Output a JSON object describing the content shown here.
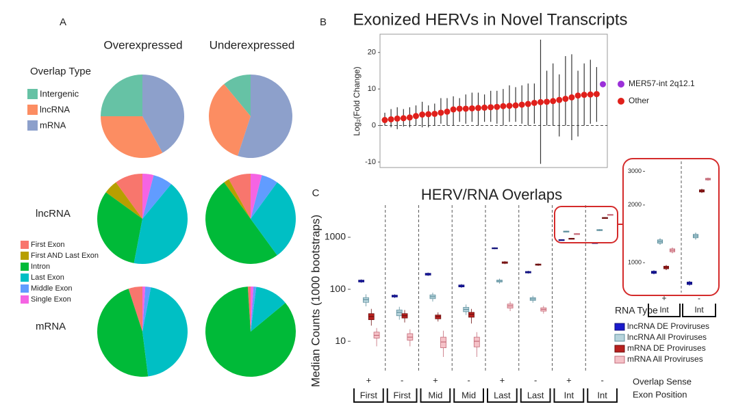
{
  "chart_data": [
    {
      "type": "pie",
      "label": "A",
      "columns": [
        "Overexpressed",
        "Underexpressed"
      ],
      "legends": [
        {
          "title": "Overlap Type",
          "categories": [
            "Intergenic",
            "lncRNA",
            "mRNA"
          ],
          "colors": [
            "#66c2a5",
            "#fc8d62",
            "#8da0cb"
          ]
        },
        {
          "categories": [
            "First Exon",
            "First AND Last Exon",
            "Intron",
            "Last Exon",
            "Middle Exon",
            "Single Exon"
          ],
          "colors": [
            "#f8766d",
            "#b79f00",
            "#00ba38",
            "#00bfc4",
            "#619cff",
            "#f564e3"
          ]
        }
      ],
      "rows": [
        {
          "values": [
            [
              25,
              33,
              42
            ],
            [
              11,
              34,
              55
            ]
          ]
        },
        {
          "title": "lncRNA",
          "values": [
            [
              10,
              5,
              32,
              42,
              7,
              4
            ],
            [
              8,
              2,
              50,
              30,
              6,
              4
            ]
          ]
        },
        {
          "title": "mRNA",
          "values": [
            [
              5,
              0,
              47,
              45,
              2,
              1
            ],
            [
              1,
              0,
              85,
              12,
              1,
              1
            ]
          ]
        }
      ]
    },
    {
      "type": "pointrange",
      "label": "B",
      "title": "Exonized HERVs in Novel Transcripts",
      "ylabel": "Log₂(Fold Change)",
      "ylim": [
        -11.5,
        25
      ],
      "yticks": [
        -10,
        0,
        10,
        20
      ],
      "hline": 0,
      "categories": [
        null,
        null,
        null,
        null,
        null,
        null,
        null,
        null,
        null,
        null,
        null,
        null,
        null,
        null,
        null,
        null,
        null,
        null,
        null,
        null,
        null,
        null,
        null,
        null,
        null,
        null,
        null,
        null,
        null,
        null,
        null,
        null,
        null,
        null,
        null,
        null
      ],
      "series": [
        {
          "name": "MER57-int 2q12.1",
          "color": "#9b30d9",
          "values": [
            null,
            null,
            null,
            null,
            null,
            null,
            null,
            null,
            null,
            null,
            null,
            null,
            null,
            null,
            null,
            null,
            null,
            null,
            null,
            null,
            null,
            null,
            null,
            null,
            null,
            null,
            null,
            null,
            null,
            null,
            null,
            null,
            null,
            null,
            null,
            11.3
          ]
        },
        {
          "name": "Other",
          "color": "#e0201b",
          "values": [
            1.5,
            1.7,
            1.9,
            2.0,
            2.2,
            2.6,
            3.0,
            3.1,
            3.2,
            3.5,
            3.8,
            4.4,
            4.6,
            4.6,
            4.7,
            4.8,
            4.9,
            5.0,
            5.1,
            5.3,
            5.4,
            5.5,
            5.7,
            5.9,
            6.2,
            6.4,
            6.5,
            6.7,
            7.0,
            7.3,
            7.7,
            8.2,
            8.4,
            8.5,
            8.6,
            null
          ],
          "lower": [
            0,
            -0.5,
            -1,
            -0.3,
            -0.5,
            0,
            -0.5,
            -0.5,
            0,
            0.5,
            0,
            0,
            1,
            0.5,
            1,
            0,
            1,
            1,
            0.5,
            0,
            1,
            1,
            0.5,
            0,
            0.5,
            -10.5,
            0,
            0,
            -3,
            0,
            -4,
            -3,
            0,
            0.5,
            1,
            null
          ],
          "upper": [
            3.5,
            4.5,
            5,
            4.5,
            5,
            5.5,
            6.5,
            5.5,
            6,
            7.5,
            7.5,
            8,
            7.5,
            8.5,
            9,
            9,
            8.5,
            9.5,
            9.5,
            10,
            11,
            10.5,
            11,
            11.5,
            11.5,
            23.5,
            15,
            17,
            14,
            19,
            19.5,
            15,
            17,
            18,
            16,
            null
          ]
        }
      ]
    },
    {
      "type": "box",
      "label": "C",
      "title": "HERV/RNA Overlaps",
      "ylabel": "Median Counts (1000 bootstraps)",
      "log": true,
      "ylim": [
        2.9,
        4150
      ],
      "yticks": [
        10,
        100,
        1000
      ],
      "sense": [
        "+",
        "-",
        "+",
        "-",
        "+",
        "-",
        "+",
        "-"
      ],
      "sense_title": "Overlap Sense",
      "categories": [
        "First",
        "First",
        "Mid",
        "Mid",
        "Last",
        "Last",
        "Int",
        "Int"
      ],
      "categories_title": "Exon Position",
      "legend_title": "RNA Type",
      "inset": {
        "ylim": [
          715,
          3270
        ],
        "yticks": [
          1000,
          2000,
          3000
        ]
      },
      "series": [
        {
          "name": "lncRNA DE Proviruses",
          "color": "#1a1acc",
          "line": "#10107a",
          "min": [
            133,
            68,
            180,
            106,
            590,
            200,
            870,
            760
          ],
          "q1": [
            138,
            71,
            187,
            111,
            603,
            206,
            880,
            770
          ],
          "median": [
            144,
            74,
            195,
            116,
            615,
            213,
            891,
            781
          ],
          "q3": [
            150,
            77,
            203,
            121,
            628,
            220,
            902,
            792
          ],
          "max": [
            155,
            80,
            210,
            126,
            640,
            227,
            912,
            803
          ]
        },
        {
          "name": "lncRNA All Proviruses",
          "color": "#b7d4dc",
          "line": "#5d8f9d",
          "min": [
            47,
            26,
            58,
            32,
            128,
            55,
            1240,
            1320
          ],
          "q1": [
            56,
            31,
            66,
            37,
            138,
            61,
            1265,
            1350
          ],
          "median": [
            63,
            36,
            72,
            41,
            144,
            65,
            1290,
            1378
          ],
          "q3": [
            69,
            40,
            78,
            45,
            150,
            69,
            1315,
            1405
          ],
          "max": [
            80,
            46,
            86,
            51,
            160,
            75,
            1340,
            1435
          ]
        },
        {
          "name": "mRNA DE Proviruses",
          "color": "#b8201e",
          "line": "#6e1010",
          "min": [
            20,
            23,
            24,
            22,
            305,
            282,
            915,
            2310
          ],
          "q1": [
            26,
            28,
            27,
            29,
            315,
            290,
            930,
            2340
          ],
          "median": [
            30,
            31,
            30,
            33,
            326,
            298,
            944,
            2371
          ],
          "q3": [
            34,
            34,
            32,
            36,
            337,
            306,
            958,
            2400
          ],
          "max": [
            42,
            40,
            36,
            42,
            348,
            314,
            972,
            2430
          ]
        },
        {
          "name": "mRNA All Proviruses",
          "color": "#f5c2c8",
          "line": "#c46a78",
          "min": [
            8,
            8,
            5,
            5,
            38,
            34,
            1120,
            2680
          ],
          "q1": [
            11.5,
            10.5,
            7.5,
            7.8,
            43.5,
            38,
            1140,
            2705
          ],
          "median": [
            13,
            12,
            9.7,
            10,
            48,
            41,
            1160,
            2730
          ],
          "q3": [
            15,
            14,
            12,
            12,
            52,
            44,
            1180,
            2755
          ],
          "max": [
            18,
            17,
            16,
            15,
            58,
            48,
            1200,
            2780
          ]
        }
      ]
    }
  ]
}
